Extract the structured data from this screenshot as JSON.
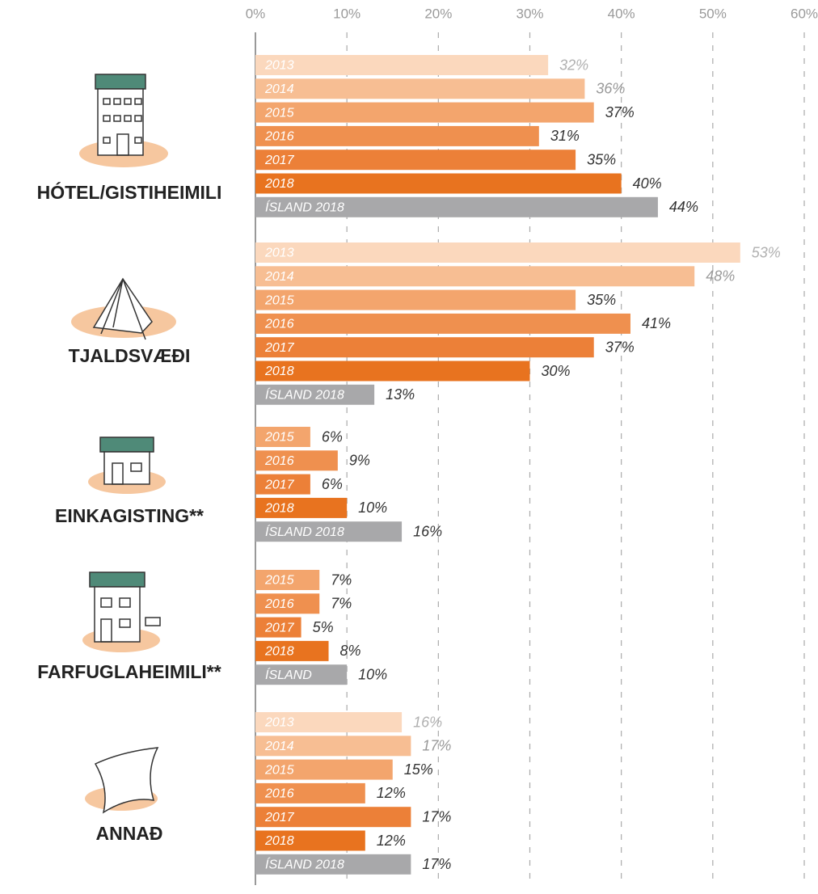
{
  "chart_data": {
    "type": "bar",
    "orientation": "horizontal",
    "xlim": [
      0,
      60
    ],
    "xticks": [
      {
        "value": 0,
        "label": "0%"
      },
      {
        "value": 10,
        "label": "10%"
      },
      {
        "value": 20,
        "label": "20%"
      },
      {
        "value": 30,
        "label": "30%"
      },
      {
        "value": 40,
        "label": "40%"
      },
      {
        "value": 50,
        "label": "50%"
      },
      {
        "value": 60,
        "label": "60%"
      }
    ],
    "grid": true,
    "groups": [
      {
        "name": "HÓTEL/GISTIHEIMILI",
        "categories": [
          "2013",
          "2014",
          "2015",
          "2016",
          "2017",
          "2018",
          "ÍSLAND 2018"
        ],
        "values": [
          32,
          36,
          37,
          31,
          35,
          40,
          44
        ],
        "value_labels": [
          "32%",
          "36%",
          "37%",
          "31%",
          "35%",
          "40%",
          "44%"
        ],
        "colors": [
          "#fbd8bd",
          "#f7be93",
          "#f3a56d",
          "#ef904f",
          "#ec8038",
          "#e8731f",
          "#a8a8aa"
        ]
      },
      {
        "name": "TJALDSVÆÐI",
        "categories": [
          "2013",
          "2014",
          "2015",
          "2016",
          "2017",
          "2018",
          "ÍSLAND 2018"
        ],
        "values": [
          53,
          48,
          35,
          41,
          37,
          30,
          13
        ],
        "value_labels": [
          "53%",
          "48%",
          "35%",
          "41%",
          "37%",
          "30%",
          "13%"
        ],
        "colors": [
          "#fbd8bd",
          "#f7be93",
          "#f3a56d",
          "#ef904f",
          "#ec8038",
          "#e8731f",
          "#a8a8aa"
        ]
      },
      {
        "name": "EINKAGISTING**",
        "categories": [
          "2015",
          "2016",
          "2017",
          "2018",
          "ÍSLAND 2018"
        ],
        "values": [
          6,
          9,
          6,
          10,
          16
        ],
        "value_labels": [
          "6%",
          "9%",
          "6%",
          "10%",
          "16%"
        ],
        "colors": [
          "#f3a56d",
          "#ef904f",
          "#ec8038",
          "#e8731f",
          "#a8a8aa"
        ]
      },
      {
        "name": "FARFUGLAHEIMILI**",
        "categories": [
          "2015",
          "2016",
          "2017",
          "2018",
          "ÍSLAND"
        ],
        "values": [
          7,
          7,
          5,
          8,
          10
        ],
        "value_labels": [
          "7%",
          "7%",
          "5%",
          "8%",
          "10%"
        ],
        "colors": [
          "#f3a56d",
          "#ef904f",
          "#ec8038",
          "#e8731f",
          "#a8a8aa"
        ]
      },
      {
        "name": "ANNAÐ",
        "categories": [
          "2013",
          "2014",
          "2015",
          "2016",
          "2017",
          "2018",
          "ÍSLAND 2018"
        ],
        "values": [
          16,
          17,
          15,
          12,
          17,
          12,
          17
        ],
        "value_labels": [
          "16%",
          "17%",
          "15%",
          "12%",
          "17%",
          "12%",
          "17%"
        ],
        "colors": [
          "#fbd8bd",
          "#f7be93",
          "#f3a56d",
          "#ef904f",
          "#ec8038",
          "#e8731f",
          "#a8a8aa"
        ]
      }
    ]
  }
}
